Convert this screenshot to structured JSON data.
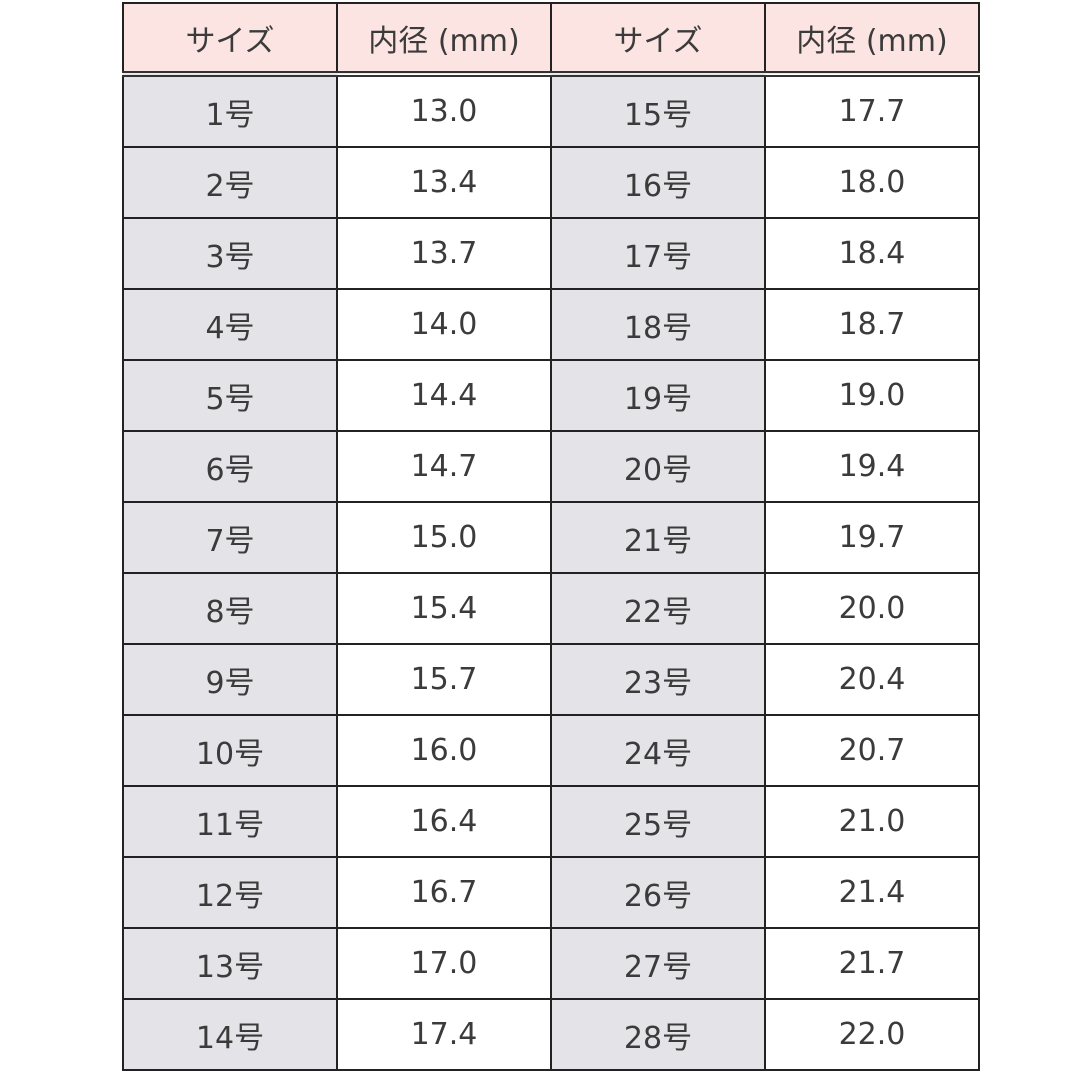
{
  "headers": [
    "サイズ",
    "内径 (mm)",
    "サイズ",
    "内径 (mm)"
  ],
  "colors": {
    "header_bg": "#fbe4e2",
    "size_bg": "#e4e4e8",
    "value_bg": "#ffffff",
    "border": "#222222"
  },
  "rows": [
    [
      "1号",
      "13.0",
      "15号",
      "17.7"
    ],
    [
      "2号",
      "13.4",
      "16号",
      "18.0"
    ],
    [
      "3号",
      "13.7",
      "17号",
      "18.4"
    ],
    [
      "4号",
      "14.0",
      "18号",
      "18.7"
    ],
    [
      "5号",
      "14.4",
      "19号",
      "19.0"
    ],
    [
      "6号",
      "14.7",
      "20号",
      "19.4"
    ],
    [
      "7号",
      "15.0",
      "21号",
      "19.7"
    ],
    [
      "8号",
      "15.4",
      "22号",
      "20.0"
    ],
    [
      "9号",
      "15.7",
      "23号",
      "20.4"
    ],
    [
      "10号",
      "16.0",
      "24号",
      "20.7"
    ],
    [
      "11号",
      "16.4",
      "25号",
      "21.0"
    ],
    [
      "12号",
      "16.7",
      "26号",
      "21.4"
    ],
    [
      "13号",
      "17.0",
      "27号",
      "21.7"
    ],
    [
      "14号",
      "17.4",
      "28号",
      "22.0"
    ]
  ]
}
